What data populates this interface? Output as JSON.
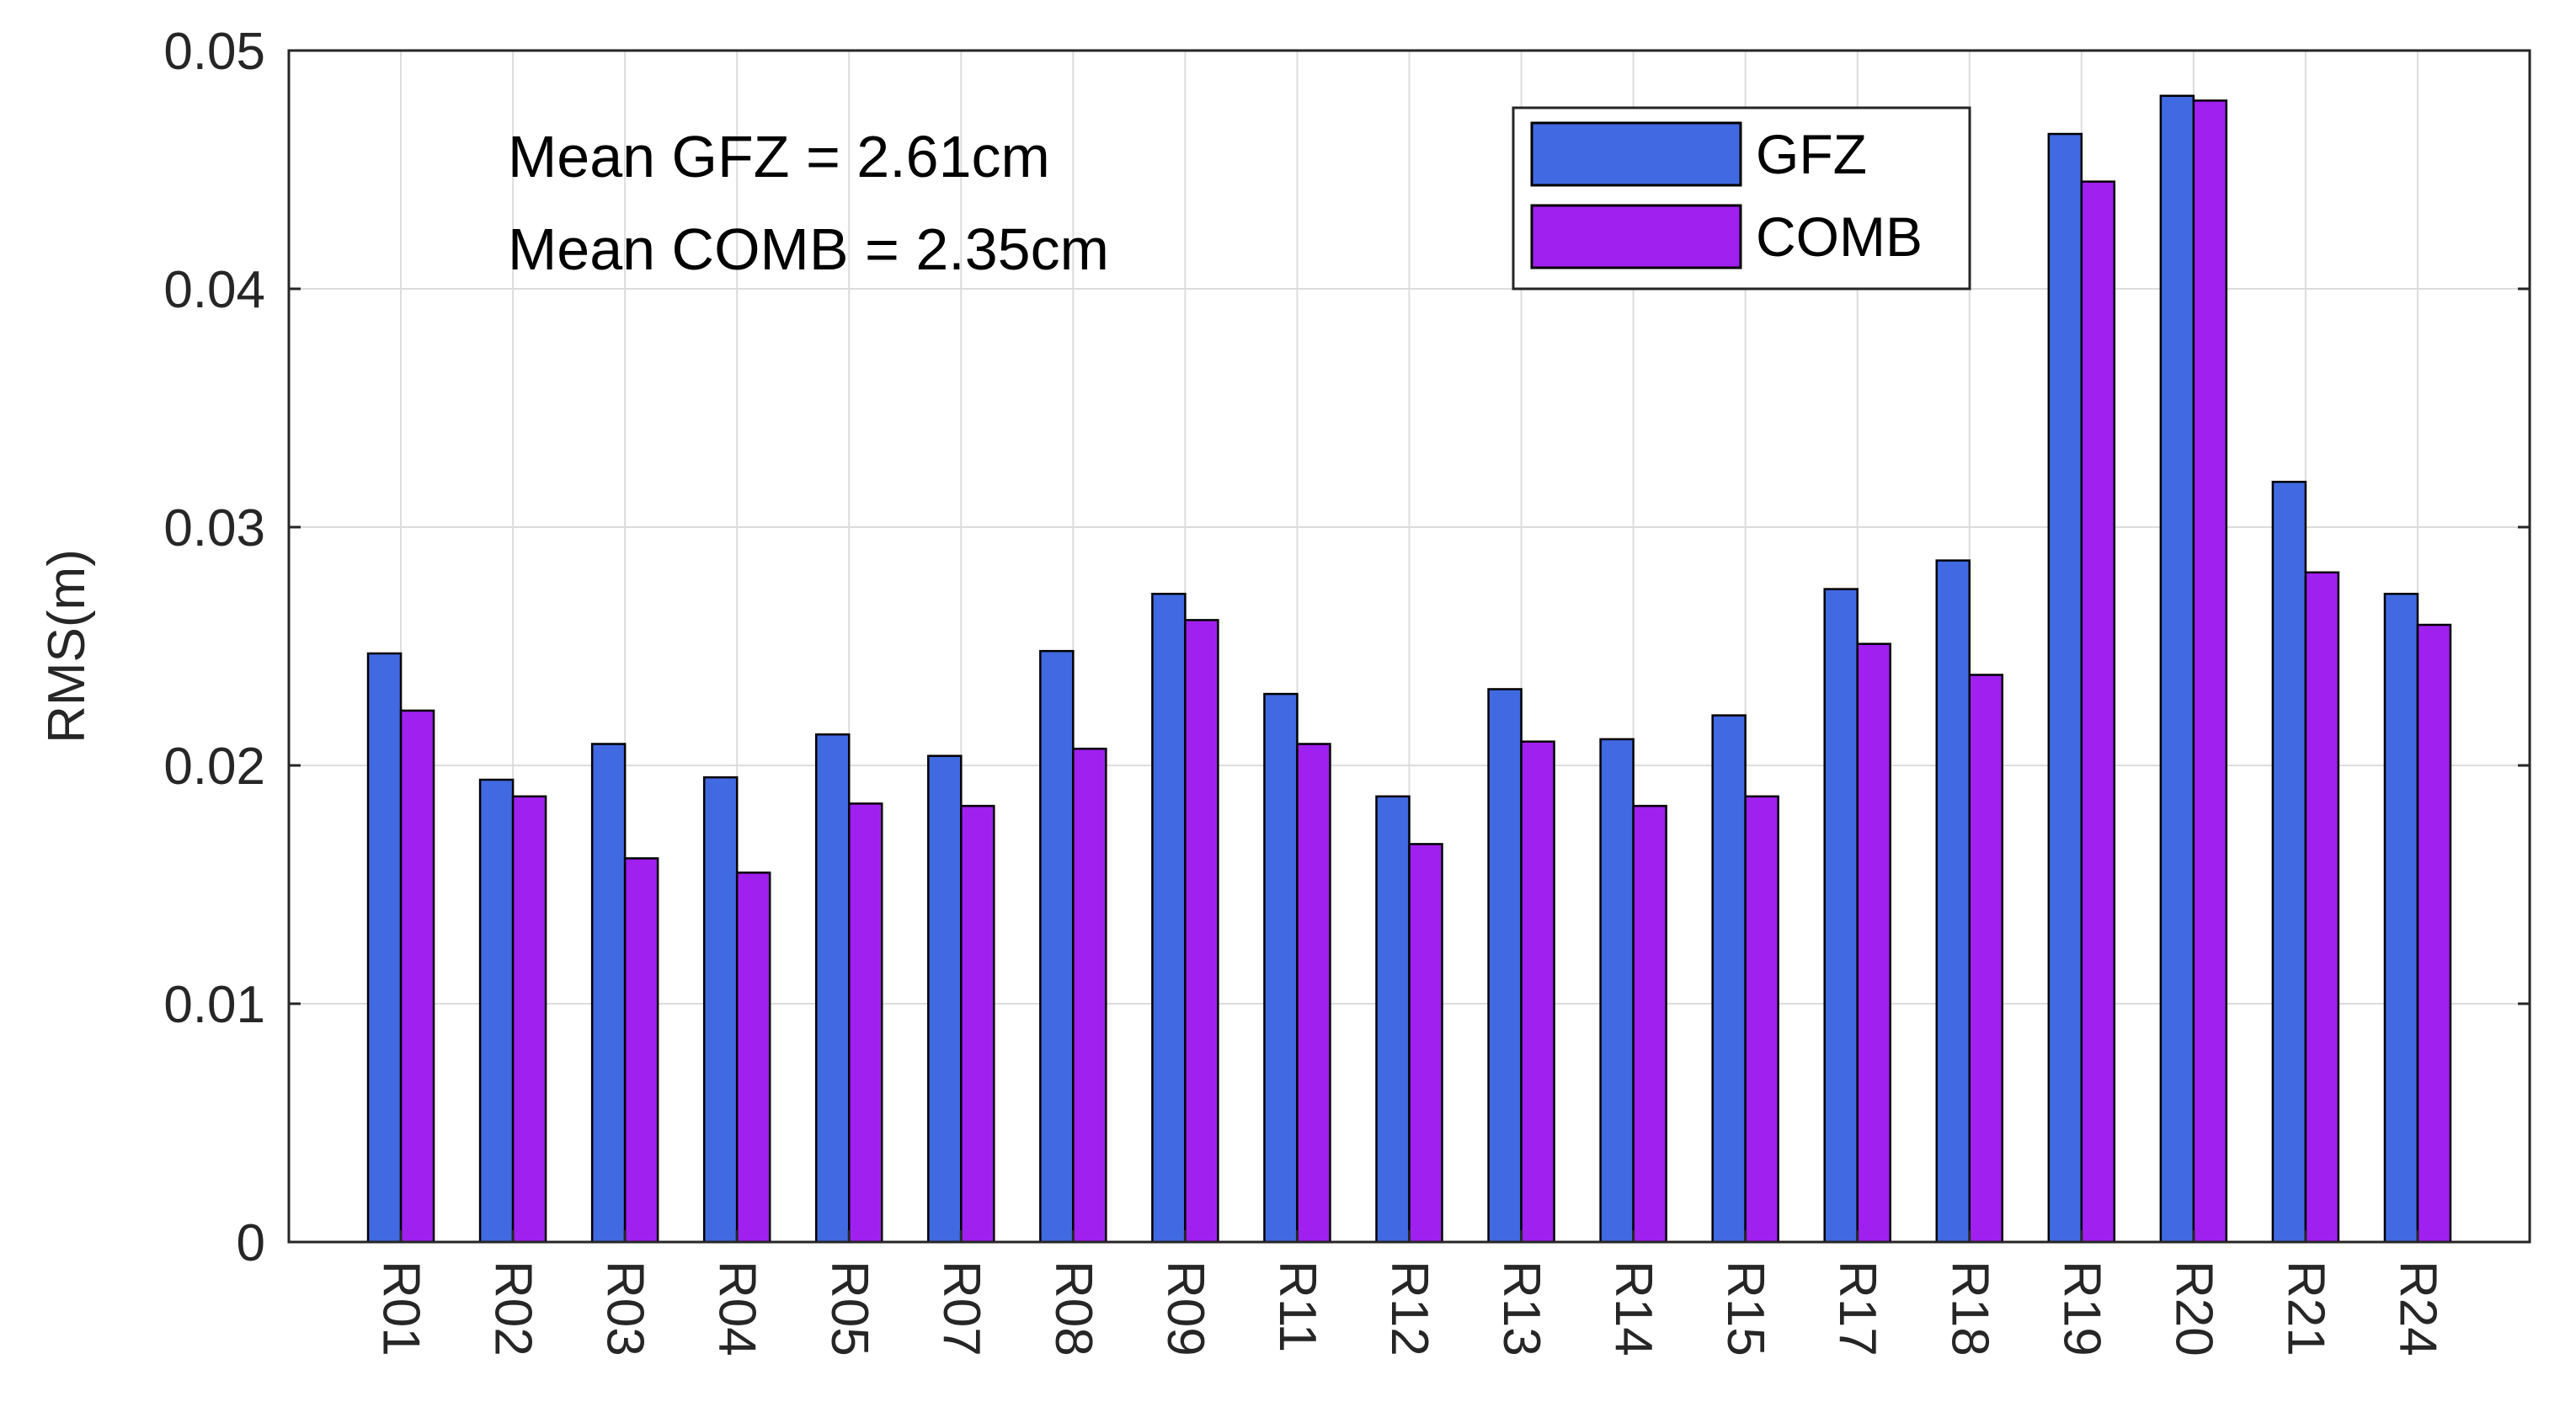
{
  "chart_data": {
    "type": "bar",
    "title": "",
    "xlabel": "",
    "ylabel": "RMS(m)",
    "ylim": [
      0,
      0.05
    ],
    "yticks": [
      "0",
      "0.01",
      "0.02",
      "0.03",
      "0.04",
      "0.05"
    ],
    "grid": true,
    "legend_position": "top-right",
    "categories": [
      "R01",
      "R02",
      "R03",
      "R04",
      "R05",
      "R07",
      "R08",
      "R09",
      "R11",
      "R12",
      "R13",
      "R14",
      "R15",
      "R17",
      "R18",
      "R19",
      "R20",
      "R21",
      "R24"
    ],
    "series": [
      {
        "name": "GFZ",
        "color": "#4169E1",
        "values": [
          0.0247,
          0.0194,
          0.0209,
          0.0195,
          0.0213,
          0.0204,
          0.0248,
          0.0272,
          0.023,
          0.0187,
          0.0232,
          0.0211,
          0.0221,
          0.0274,
          0.0286,
          0.0465,
          0.0481,
          0.0319,
          0.0272
        ]
      },
      {
        "name": "COMB",
        "color": "#A020F0",
        "values": [
          0.0223,
          0.0187,
          0.0161,
          0.0155,
          0.0184,
          0.0183,
          0.0207,
          0.0261,
          0.0209,
          0.0167,
          0.021,
          0.0183,
          0.0187,
          0.0251,
          0.0238,
          0.0445,
          0.0479,
          0.0281,
          0.0259
        ]
      }
    ],
    "annotations": [
      "Mean GFZ = 2.61cm",
      "Mean COMB = 2.35cm"
    ]
  }
}
